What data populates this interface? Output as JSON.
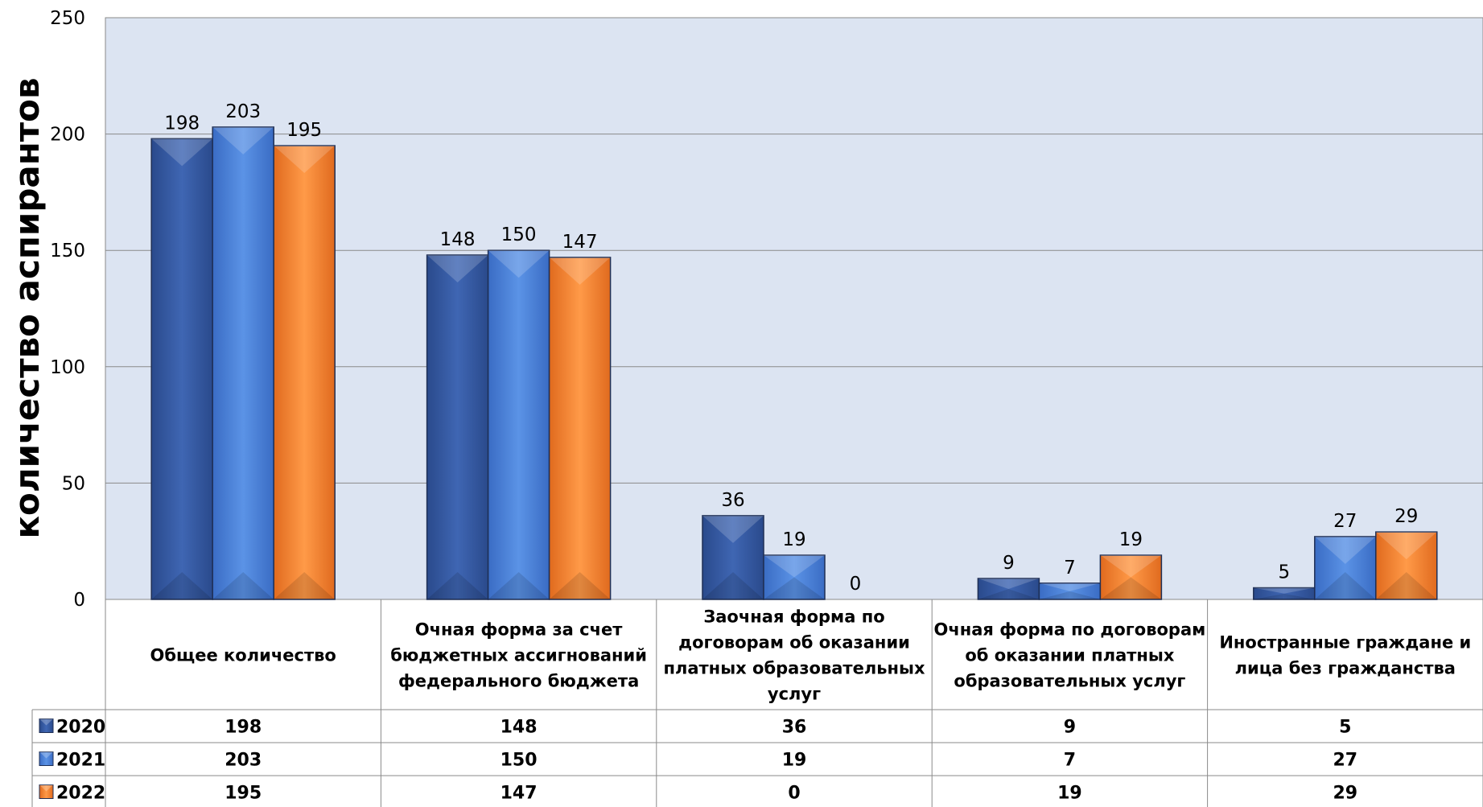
{
  "chart_data": {
    "type": "bar",
    "ylabel": "количество аспирантов",
    "ylim": [
      0,
      250
    ],
    "yticks": [
      0,
      50,
      100,
      150,
      200,
      250
    ],
    "grid": true,
    "categories": [
      "Общее количество",
      "Очная форма за счет бюджетных ассигнований федерального бюджета",
      "Заочная форма по договорам об оказании платных образовательных услуг",
      "Очная форма по договорам об оказании платных образовательных услуг",
      "Иностранные граждане и лица без гражданства"
    ],
    "series": [
      {
        "name": "2020",
        "values": [
          198,
          148,
          36,
          9,
          5
        ],
        "color": "#3a5fa8"
      },
      {
        "name": "2021",
        "values": [
          203,
          150,
          19,
          7,
          27
        ],
        "color": "#4f86db"
      },
      {
        "name": "2022",
        "values": [
          195,
          147,
          0,
          19,
          29
        ],
        "color": "#f58a3a"
      }
    ],
    "data_table": true,
    "plot_background": "#dce4f2"
  }
}
